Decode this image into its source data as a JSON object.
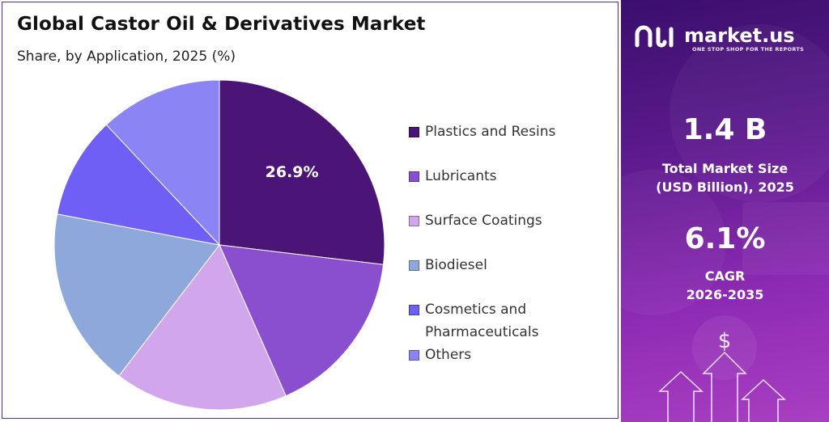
{
  "chart_data": {
    "type": "pie",
    "title": "Global Castor Oil & Derivatives Market",
    "subtitle": "Share, by Application, 2025 (%)",
    "categories": [
      "Plastics and Resins",
      "Lubricants",
      "Surface Coatings",
      "Biodiesel",
      "Cosmetics and Pharmaceuticals",
      "Others"
    ],
    "values": [
      26.9,
      16.5,
      17.0,
      17.6,
      10.0,
      12.0
    ],
    "colors": [
      "#4b1578",
      "#8a4fce",
      "#d2a6ec",
      "#8fa8dc",
      "#6f5ff5",
      "#8a84f5"
    ],
    "data_labels": [
      "26.9%",
      "",
      "",
      "",
      "",
      ""
    ],
    "legend_items": [
      {
        "lines": [
          "Plastics and Resins"
        ]
      },
      {
        "lines": [
          "Lubricants"
        ]
      },
      {
        "lines": [
          "Surface Coatings"
        ]
      },
      {
        "lines": [
          "Biodiesel"
        ]
      },
      {
        "lines": [
          "Cosmetics and",
          "Pharmaceuticals"
        ]
      },
      {
        "lines": [
          "Others"
        ]
      }
    ],
    "legend_position": "right"
  },
  "brand": {
    "name": "market.us",
    "tagline": "ONE STOP SHOP FOR THE REPORTS"
  },
  "stats": {
    "market_size_value": "1.4 B",
    "market_size_label_1": "Total Market Size",
    "market_size_label_2": "(USD Billion), 2025",
    "cagr_value": "6.1%",
    "cagr_label_1": "CAGR",
    "cagr_label_2": "2026-2035"
  },
  "icons": {
    "logo": "market-us-logo-icon",
    "dollar": "dollar-icon",
    "arrows": "up-arrow-icon"
  },
  "colors": {
    "panel_dark": "#3a0f6c",
    "panel_light": "#a93fc2",
    "border": "#5b2a86"
  }
}
